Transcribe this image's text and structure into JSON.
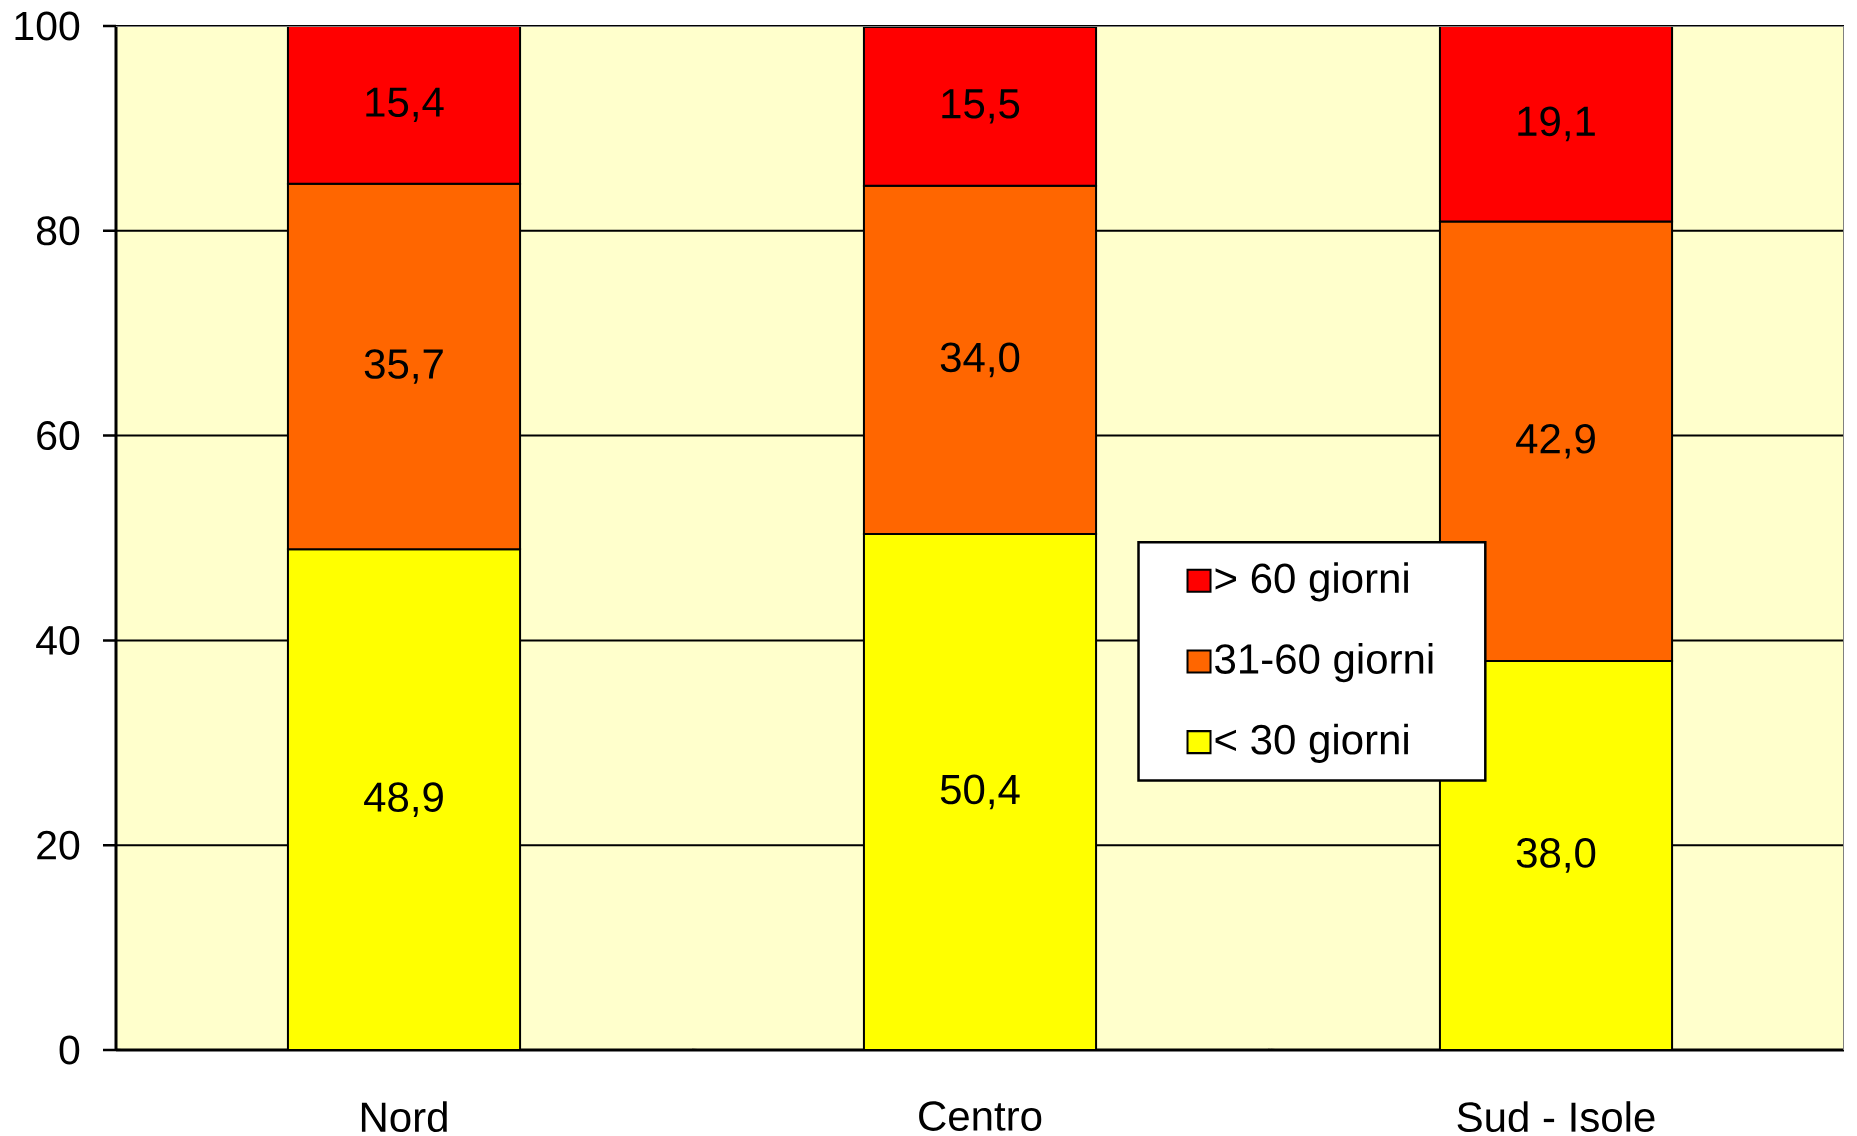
{
  "chart_data": {
    "type": "bar",
    "stacked": true,
    "categories": [
      "Nord",
      "Centro",
      "Sud - Isole"
    ],
    "series": [
      {
        "name": "< 30 giorni",
        "color": "#ffff00",
        "values": [
          48.9,
          50.4,
          38.0
        ],
        "value_labels": [
          "48,9",
          "50,4",
          "38,0"
        ]
      },
      {
        "name": "31-60 giorni",
        "color": "#ff6600",
        "values": [
          35.7,
          34.0,
          42.9
        ],
        "value_labels": [
          "35,7",
          "34,0",
          "42,9"
        ]
      },
      {
        "name": "> 60 giorni",
        "color": "#ff0000",
        "values": [
          15.4,
          15.5,
          19.1
        ],
        "value_labels": [
          "15,4",
          "15,5",
          "19,1"
        ]
      }
    ],
    "ylim": [
      0,
      100
    ],
    "yticks": [
      0,
      20,
      40,
      60,
      80,
      100
    ],
    "grid": "y",
    "legend": "right"
  }
}
